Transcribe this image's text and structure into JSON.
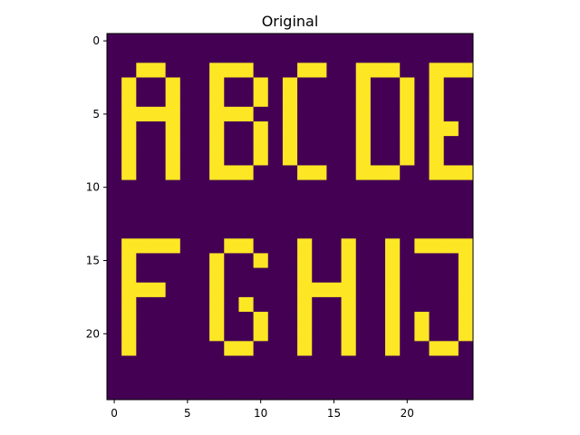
{
  "chart_data": {
    "type": "heatmap",
    "title": "Original",
    "xlabel": "",
    "ylabel": "",
    "xlim": [
      -0.5,
      24.5
    ],
    "ylim": [
      24.5,
      -0.5
    ],
    "x_ticks": [
      0,
      5,
      10,
      15,
      20
    ],
    "y_ticks": [
      0,
      5,
      10,
      15,
      20
    ],
    "grid": false,
    "colors": {
      "low": "#440154",
      "high": "#fde725"
    },
    "values": [
      [
        0,
        0,
        0,
        0,
        0,
        0,
        0,
        0,
        0,
        0,
        0,
        0,
        0,
        0,
        0,
        0,
        0,
        0,
        0,
        0,
        0,
        0,
        0,
        0,
        0
      ],
      [
        0,
        0,
        0,
        0,
        0,
        0,
        0,
        0,
        0,
        0,
        0,
        0,
        0,
        0,
        0,
        0,
        0,
        0,
        0,
        0,
        0,
        0,
        0,
        0,
        0
      ],
      [
        0,
        0,
        1,
        1,
        0,
        0,
        0,
        1,
        1,
        1,
        0,
        0,
        0,
        1,
        1,
        0,
        0,
        1,
        1,
        1,
        0,
        0,
        1,
        1,
        1
      ],
      [
        0,
        1,
        0,
        0,
        1,
        0,
        0,
        1,
        0,
        0,
        1,
        0,
        1,
        0,
        0,
        0,
        0,
        1,
        0,
        0,
        1,
        0,
        1,
        0,
        0
      ],
      [
        0,
        1,
        0,
        0,
        1,
        0,
        0,
        1,
        0,
        0,
        1,
        0,
        1,
        0,
        0,
        0,
        0,
        1,
        0,
        0,
        1,
        0,
        1,
        0,
        0
      ],
      [
        0,
        1,
        1,
        1,
        1,
        0,
        0,
        1,
        1,
        1,
        0,
        0,
        1,
        0,
        0,
        0,
        0,
        1,
        0,
        0,
        1,
        0,
        1,
        0,
        0
      ],
      [
        0,
        1,
        0,
        0,
        1,
        0,
        0,
        1,
        0,
        0,
        1,
        0,
        1,
        0,
        0,
        0,
        0,
        1,
        0,
        0,
        1,
        0,
        1,
        1,
        0
      ],
      [
        0,
        1,
        0,
        0,
        1,
        0,
        0,
        1,
        0,
        0,
        1,
        0,
        1,
        0,
        0,
        0,
        0,
        1,
        0,
        0,
        1,
        0,
        1,
        0,
        0
      ],
      [
        0,
        1,
        0,
        0,
        1,
        0,
        0,
        1,
        0,
        0,
        1,
        0,
        1,
        0,
        0,
        0,
        0,
        1,
        0,
        0,
        1,
        0,
        1,
        0,
        0
      ],
      [
        0,
        1,
        0,
        0,
        1,
        0,
        0,
        1,
        1,
        1,
        0,
        0,
        0,
        1,
        1,
        0,
        0,
        1,
        1,
        1,
        0,
        0,
        1,
        1,
        1
      ],
      [
        0,
        0,
        0,
        0,
        0,
        0,
        0,
        0,
        0,
        0,
        0,
        0,
        0,
        0,
        0,
        0,
        0,
        0,
        0,
        0,
        0,
        0,
        0,
        0,
        0
      ],
      [
        0,
        0,
        0,
        0,
        0,
        0,
        0,
        0,
        0,
        0,
        0,
        0,
        0,
        0,
        0,
        0,
        0,
        0,
        0,
        0,
        0,
        0,
        0,
        0,
        0
      ],
      [
        0,
        0,
        0,
        0,
        0,
        0,
        0,
        0,
        0,
        0,
        0,
        0,
        0,
        0,
        0,
        0,
        0,
        0,
        0,
        0,
        0,
        0,
        0,
        0,
        0
      ],
      [
        0,
        0,
        0,
        0,
        0,
        0,
        0,
        0,
        0,
        0,
        0,
        0,
        0,
        0,
        0,
        0,
        0,
        0,
        0,
        0,
        0,
        0,
        0,
        0,
        0
      ],
      [
        0,
        1,
        1,
        1,
        1,
        0,
        0,
        0,
        1,
        1,
        0,
        0,
        0,
        1,
        0,
        0,
        1,
        0,
        0,
        1,
        0,
        1,
        1,
        1,
        1
      ],
      [
        0,
        1,
        0,
        0,
        0,
        0,
        0,
        1,
        0,
        0,
        1,
        0,
        0,
        1,
        0,
        0,
        1,
        0,
        0,
        1,
        0,
        0,
        0,
        0,
        1
      ],
      [
        0,
        1,
        0,
        0,
        0,
        0,
        0,
        1,
        0,
        0,
        0,
        0,
        0,
        1,
        0,
        0,
        1,
        0,
        0,
        1,
        0,
        0,
        0,
        0,
        1
      ],
      [
        0,
        1,
        1,
        1,
        0,
        0,
        0,
        1,
        0,
        0,
        0,
        0,
        0,
        1,
        1,
        1,
        1,
        0,
        0,
        1,
        0,
        0,
        0,
        0,
        1
      ],
      [
        0,
        1,
        0,
        0,
        0,
        0,
        0,
        1,
        0,
        1,
        0,
        0,
        0,
        1,
        0,
        0,
        1,
        0,
        0,
        1,
        0,
        0,
        0,
        0,
        1
      ],
      [
        0,
        1,
        0,
        0,
        0,
        0,
        0,
        1,
        0,
        0,
        1,
        0,
        0,
        1,
        0,
        0,
        1,
        0,
        0,
        1,
        0,
        1,
        0,
        0,
        1
      ],
      [
        0,
        1,
        0,
        0,
        0,
        0,
        0,
        1,
        0,
        0,
        1,
        0,
        0,
        1,
        0,
        0,
        1,
        0,
        0,
        1,
        0,
        1,
        0,
        0,
        1
      ],
      [
        0,
        1,
        0,
        0,
        0,
        0,
        0,
        0,
        1,
        1,
        0,
        0,
        0,
        1,
        0,
        0,
        1,
        0,
        0,
        1,
        0,
        0,
        1,
        1,
        0
      ],
      [
        0,
        0,
        0,
        0,
        0,
        0,
        0,
        0,
        0,
        0,
        0,
        0,
        0,
        0,
        0,
        0,
        0,
        0,
        0,
        0,
        0,
        0,
        0,
        0,
        0
      ],
      [
        0,
        0,
        0,
        0,
        0,
        0,
        0,
        0,
        0,
        0,
        0,
        0,
        0,
        0,
        0,
        0,
        0,
        0,
        0,
        0,
        0,
        0,
        0,
        0,
        0
      ],
      [
        0,
        0,
        0,
        0,
        0,
        0,
        0,
        0,
        0,
        0,
        0,
        0,
        0,
        0,
        0,
        0,
        0,
        0,
        0,
        0,
        0,
        0,
        0,
        0,
        0
      ]
    ]
  }
}
